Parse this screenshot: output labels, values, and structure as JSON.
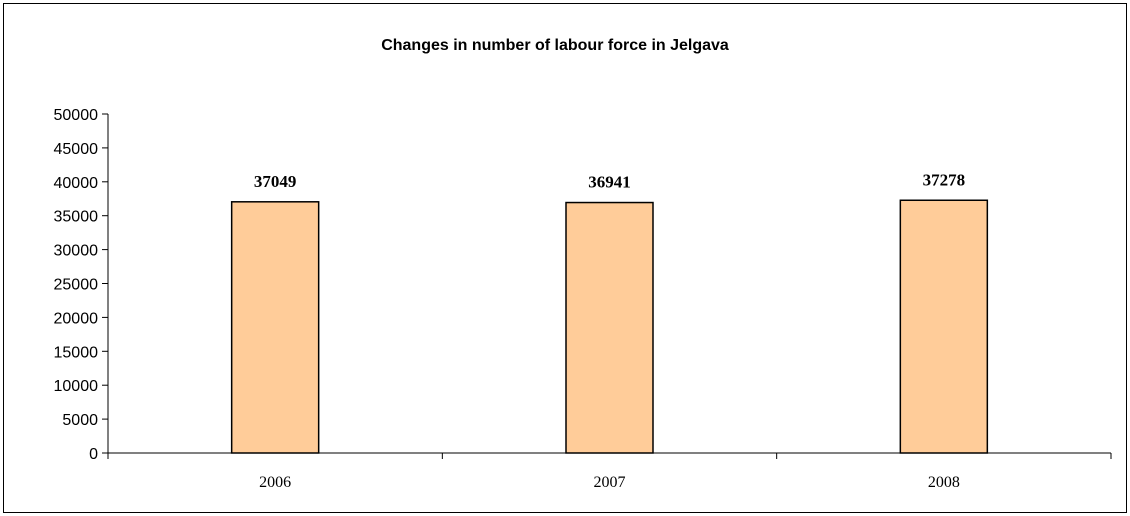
{
  "chart_data": {
    "type": "bar",
    "title": "Changes in number of labour force in Jelgava",
    "xlabel": "",
    "ylabel": "",
    "categories": [
      "2006",
      "2007",
      "2008"
    ],
    "values": [
      37049,
      36941,
      37278
    ],
    "data_labels": [
      "37049",
      "36941",
      "37278"
    ],
    "ylim": [
      0,
      50000
    ],
    "yticks": [
      0,
      5000,
      10000,
      15000,
      20000,
      25000,
      30000,
      35000,
      40000,
      45000,
      50000
    ],
    "grid": false,
    "legend": "none",
    "bar_color": "#FFCC99",
    "bar_edge_color": "#000000"
  }
}
